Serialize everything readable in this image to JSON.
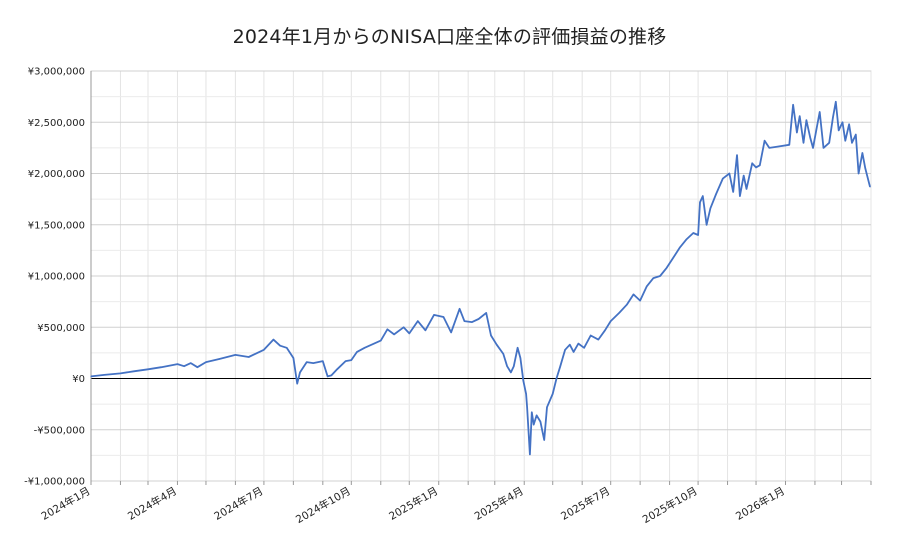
{
  "chart_data": {
    "type": "line",
    "title": "2024年1月からのNISA口座全体の評価損益の推移",
    "xlabel": "",
    "ylabel": "",
    "xlim": [
      "2024-01-01",
      "2026-04-01"
    ],
    "ylim": [
      -1000000,
      3000000
    ],
    "grid": true,
    "legend": "none",
    "y_ticks": [
      -1000000,
      -500000,
      0,
      500000,
      1000000,
      1500000,
      2000000,
      2500000,
      3000000
    ],
    "y_tick_labels": [
      "-¥1,000,000",
      "-¥500,000",
      "¥0",
      "¥500,000",
      "¥1,000,000",
      "¥1,500,000",
      "¥2,000,000",
      "¥2,500,000",
      "¥3,000,000"
    ],
    "x_ticks": [
      "2024-01-01",
      "2024-04-01",
      "2024-07-01",
      "2024-10-01",
      "2025-01-01",
      "2025-04-01",
      "2025-07-01",
      "2025-10-01",
      "2026-01-01"
    ],
    "x_tick_labels": [
      "2024年1月",
      "2024年4月",
      "2024年7月",
      "2024年10月",
      "2025年1月",
      "2025年4月",
      "2025年7月",
      "2025年10月",
      "2026年1月"
    ],
    "series": [
      {
        "color": "#4472c4",
        "points": [
          [
            "2024-01-01",
            20000
          ],
          [
            "2024-01-15",
            35000
          ],
          [
            "2024-02-01",
            50000
          ],
          [
            "2024-02-15",
            70000
          ],
          [
            "2024-03-01",
            90000
          ],
          [
            "2024-03-15",
            110000
          ],
          [
            "2024-04-01",
            140000
          ],
          [
            "2024-04-08",
            120000
          ],
          [
            "2024-04-15",
            150000
          ],
          [
            "2024-04-22",
            110000
          ],
          [
            "2024-05-01",
            160000
          ],
          [
            "2024-05-15",
            190000
          ],
          [
            "2024-06-01",
            230000
          ],
          [
            "2024-06-15",
            210000
          ],
          [
            "2024-07-01",
            280000
          ],
          [
            "2024-07-11",
            380000
          ],
          [
            "2024-07-18",
            320000
          ],
          [
            "2024-07-25",
            300000
          ],
          [
            "2024-08-01",
            200000
          ],
          [
            "2024-08-05",
            -50000
          ],
          [
            "2024-08-08",
            60000
          ],
          [
            "2024-08-15",
            160000
          ],
          [
            "2024-08-22",
            150000
          ],
          [
            "2024-09-01",
            170000
          ],
          [
            "2024-09-06",
            20000
          ],
          [
            "2024-09-10",
            30000
          ],
          [
            "2024-09-16",
            90000
          ],
          [
            "2024-09-25",
            170000
          ],
          [
            "2024-10-01",
            180000
          ],
          [
            "2024-10-07",
            260000
          ],
          [
            "2024-10-15",
            300000
          ],
          [
            "2024-10-25",
            340000
          ],
          [
            "2024-11-01",
            370000
          ],
          [
            "2024-11-08",
            480000
          ],
          [
            "2024-11-15",
            430000
          ],
          [
            "2024-11-25",
            500000
          ],
          [
            "2024-12-01",
            440000
          ],
          [
            "2024-12-10",
            560000
          ],
          [
            "2024-12-18",
            470000
          ],
          [
            "2024-12-27",
            620000
          ],
          [
            "2025-01-06",
            600000
          ],
          [
            "2025-01-14",
            450000
          ],
          [
            "2025-01-23",
            680000
          ],
          [
            "2025-01-28",
            560000
          ],
          [
            "2025-02-05",
            550000
          ],
          [
            "2025-02-12",
            580000
          ],
          [
            "2025-02-20",
            640000
          ],
          [
            "2025-02-25",
            420000
          ],
          [
            "2025-03-03",
            330000
          ],
          [
            "2025-03-10",
            240000
          ],
          [
            "2025-03-14",
            120000
          ],
          [
            "2025-03-18",
            60000
          ],
          [
            "2025-03-21",
            120000
          ],
          [
            "2025-03-25",
            300000
          ],
          [
            "2025-03-28",
            200000
          ],
          [
            "2025-03-31",
            -20000
          ],
          [
            "2025-04-03",
            -150000
          ],
          [
            "2025-04-04",
            -280000
          ],
          [
            "2025-04-07",
            -740000
          ],
          [
            "2025-04-09",
            -330000
          ],
          [
            "2025-04-11",
            -450000
          ],
          [
            "2025-04-14",
            -360000
          ],
          [
            "2025-04-18",
            -420000
          ],
          [
            "2025-04-22",
            -600000
          ],
          [
            "2025-04-25",
            -280000
          ],
          [
            "2025-05-01",
            -150000
          ],
          [
            "2025-05-05",
            0
          ],
          [
            "2025-05-09",
            120000
          ],
          [
            "2025-05-14",
            280000
          ],
          [
            "2025-05-19",
            330000
          ],
          [
            "2025-05-23",
            260000
          ],
          [
            "2025-05-28",
            340000
          ],
          [
            "2025-06-03",
            300000
          ],
          [
            "2025-06-10",
            420000
          ],
          [
            "2025-06-18",
            380000
          ],
          [
            "2025-06-25",
            470000
          ],
          [
            "2025-07-01",
            560000
          ],
          [
            "2025-07-10",
            640000
          ],
          [
            "2025-07-18",
            720000
          ],
          [
            "2025-07-25",
            820000
          ],
          [
            "2025-08-01",
            760000
          ],
          [
            "2025-08-08",
            900000
          ],
          [
            "2025-08-15",
            980000
          ],
          [
            "2025-08-22",
            1000000
          ],
          [
            "2025-08-29",
            1080000
          ],
          [
            "2025-09-05",
            1180000
          ],
          [
            "2025-09-12",
            1280000
          ],
          [
            "2025-09-19",
            1360000
          ],
          [
            "2025-09-26",
            1420000
          ],
          [
            "2025-10-01",
            1400000
          ],
          [
            "2025-10-03",
            1720000
          ],
          [
            "2025-10-06",
            1780000
          ],
          [
            "2025-10-10",
            1500000
          ],
          [
            "2025-10-14",
            1660000
          ],
          [
            "2025-10-20",
            1800000
          ],
          [
            "2025-10-27",
            1950000
          ],
          [
            "2025-11-03",
            2000000
          ],
          [
            "2025-11-07",
            1820000
          ],
          [
            "2025-11-11",
            2180000
          ],
          [
            "2025-11-14",
            1780000
          ],
          [
            "2025-11-18",
            1980000
          ],
          [
            "2025-11-21",
            1850000
          ],
          [
            "2025-11-27",
            2100000
          ],
          [
            "2025-12-01",
            2060000
          ],
          [
            "2025-12-05",
            2080000
          ],
          [
            "2025-12-10",
            2320000
          ],
          [
            "2025-12-15",
            2250000
          ],
          [
            "2025-12-22",
            2260000
          ],
          [
            "2026-01-05",
            2280000
          ],
          [
            "2026-01-07",
            2480000
          ],
          [
            "2026-01-09",
            2670000
          ],
          [
            "2026-01-13",
            2400000
          ],
          [
            "2026-01-16",
            2560000
          ],
          [
            "2026-01-20",
            2300000
          ],
          [
            "2026-01-23",
            2520000
          ],
          [
            "2026-01-27",
            2350000
          ],
          [
            "2026-01-30",
            2250000
          ],
          [
            "2026-02-03",
            2450000
          ],
          [
            "2026-02-06",
            2600000
          ],
          [
            "2026-02-10",
            2250000
          ],
          [
            "2026-02-16",
            2300000
          ],
          [
            "2026-02-20",
            2550000
          ],
          [
            "2026-02-23",
            2700000
          ],
          [
            "2026-02-26",
            2420000
          ],
          [
            "2026-03-02",
            2500000
          ],
          [
            "2026-03-05",
            2320000
          ],
          [
            "2026-03-09",
            2480000
          ],
          [
            "2026-03-12",
            2300000
          ],
          [
            "2026-03-16",
            2380000
          ],
          [
            "2026-03-19",
            2000000
          ],
          [
            "2026-03-23",
            2200000
          ],
          [
            "2026-03-26",
            2050000
          ],
          [
            "2026-03-31",
            1870000
          ]
        ]
      }
    ]
  }
}
